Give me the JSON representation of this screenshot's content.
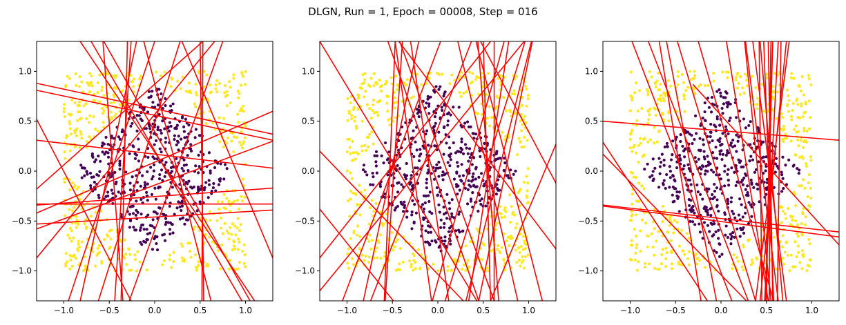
{
  "title": "DLGN, Run = 1, Epoch = 00008, Step = 016",
  "colors": {
    "inner": "#440154",
    "outer": "#fde725",
    "line": "#ff0000"
  },
  "chart_data": [
    {
      "type": "scatter",
      "xlim": [
        -1.3,
        1.3
      ],
      "ylim": [
        -1.3,
        1.3
      ],
      "xticks": [
        -1.0,
        -0.5,
        0.0,
        0.5,
        1.0
      ],
      "yticks": [
        -1.0,
        -0.5,
        0.0,
        0.5,
        1.0
      ],
      "xticklabels": [
        "−1.0",
        "−0.5",
        "0.0",
        "0.5",
        "1.0"
      ],
      "yticklabels": [
        "−1.0",
        "−0.5",
        "0.0",
        "0.5",
        "1.0"
      ],
      "grid": false,
      "series": [
        {
          "class": "inner",
          "color": "#440154",
          "region": "diamond |x|+|y|<=0.9 (approx.)",
          "point_count": 480
        },
        {
          "class": "outer",
          "color": "#fde725",
          "region": "square |x|,|y|<=1 outside diamond",
          "point_count": 520
        }
      ],
      "lines": [
        [
          [
            -1.3,
            0.88
          ],
          [
            1.3,
            0.37
          ]
        ],
        [
          [
            -1.3,
            0.81
          ],
          [
            1.3,
            0.31
          ]
        ],
        [
          [
            -1.3,
            0.31
          ],
          [
            1.3,
            0.03
          ]
        ],
        [
          [
            -1.3,
            -0.34
          ],
          [
            1.3,
            -0.17
          ]
        ],
        [
          [
            -1.3,
            -0.53
          ],
          [
            1.3,
            -0.39
          ]
        ],
        [
          [
            -1.3,
            -0.33
          ],
          [
            1.3,
            -0.33
          ]
        ],
        [
          [
            -1.3,
            0.52
          ],
          [
            -0.26,
            -1.3
          ]
        ],
        [
          [
            -1.3,
            -0.87
          ],
          [
            0.66,
            1.3
          ]
        ],
        [
          [
            -1.3,
            -0.18
          ],
          [
            0.53,
            1.3
          ]
        ],
        [
          [
            -1.3,
            -0.42
          ],
          [
            1.3,
            0.6
          ]
        ],
        [
          [
            -1.3,
            -0.58
          ],
          [
            1.3,
            0.3
          ]
        ],
        [
          [
            -0.56,
            1.3
          ],
          [
            1.05,
            -1.3
          ]
        ],
        [
          [
            -0.7,
            1.3
          ],
          [
            0.96,
            -1.3
          ]
        ],
        [
          [
            -0.57,
            1.3
          ],
          [
            -0.35,
            -1.3
          ]
        ],
        [
          [
            -0.26,
            1.3
          ],
          [
            -0.44,
            -1.3
          ]
        ],
        [
          [
            -0.3,
            1.3
          ],
          [
            -0.37,
            -1.3
          ]
        ],
        [
          [
            -0.2,
            1.3
          ],
          [
            -0.82,
            -1.3
          ]
        ],
        [
          [
            0.0,
            1.3
          ],
          [
            -0.95,
            -1.3
          ]
        ],
        [
          [
            0.28,
            1.3
          ],
          [
            -0.62,
            -1.3
          ]
        ],
        [
          [
            -0.12,
            1.3
          ],
          [
            0.62,
            -1.3
          ]
        ],
        [
          [
            0.53,
            1.3
          ],
          [
            0.52,
            -1.3
          ]
        ],
        [
          [
            0.5,
            1.3
          ],
          [
            0.54,
            -1.3
          ]
        ],
        [
          [
            0.3,
            1.3
          ],
          [
            1.3,
            -0.87
          ]
        ],
        [
          [
            -0.82,
            1.3
          ],
          [
            1.1,
            -1.3
          ]
        ],
        [
          [
            0.75,
            1.3
          ],
          [
            -0.28,
            -1.3
          ]
        ]
      ]
    },
    {
      "type": "scatter",
      "xlim": [
        -1.3,
        1.3
      ],
      "ylim": [
        -1.3,
        1.3
      ],
      "xticks": [
        -1.0,
        -0.5,
        0.0,
        0.5,
        1.0
      ],
      "yticks": [
        -1.0,
        -0.5,
        0.0,
        0.5,
        1.0
      ],
      "xticklabels": [
        "−1.0",
        "−0.5",
        "0.0",
        "0.5",
        "1.0"
      ],
      "yticklabels": [
        "−1.0",
        "−0.5",
        "0.0",
        "0.5",
        "1.0"
      ],
      "grid": false,
      "series": [
        {
          "class": "inner",
          "color": "#440154",
          "region": "diamond |x|+|y|<=0.9 (approx.)",
          "point_count": 480
        },
        {
          "class": "outer",
          "color": "#fde725",
          "region": "square |x|,|y|<=1 outside diamond",
          "point_count": 520
        }
      ],
      "lines": [
        [
          [
            -1.3,
            1.3
          ],
          [
            0.43,
            -1.3
          ]
        ],
        [
          [
            -1.3,
            0.2
          ],
          [
            0.28,
            -1.3
          ]
        ],
        [
          [
            -1.3,
            -0.38
          ],
          [
            -0.49,
            -1.3
          ]
        ],
        [
          [
            -1.3,
            -0.87
          ],
          [
            0.58,
            1.3
          ]
        ],
        [
          [
            -1.3,
            -1.2
          ],
          [
            0.95,
            1.3
          ]
        ],
        [
          [
            -0.55,
            1.3
          ],
          [
            0.45,
            -1.3
          ]
        ],
        [
          [
            -0.42,
            1.3
          ],
          [
            0.62,
            -1.3
          ]
        ],
        [
          [
            -0.3,
            1.3
          ],
          [
            0.12,
            -1.3
          ]
        ],
        [
          [
            -0.47,
            1.3
          ],
          [
            -0.07,
            -1.3
          ]
        ],
        [
          [
            -0.47,
            1.3
          ],
          [
            -0.59,
            -1.3
          ]
        ],
        [
          [
            -0.39,
            1.3
          ],
          [
            -0.58,
            -1.3
          ]
        ],
        [
          [
            -0.21,
            1.3
          ],
          [
            -0.82,
            -1.3
          ]
        ],
        [
          [
            0.03,
            1.3
          ],
          [
            -1.05,
            -1.3
          ]
        ],
        [
          [
            0.37,
            1.3
          ],
          [
            -0.74,
            -1.3
          ]
        ],
        [
          [
            0.5,
            1.3
          ],
          [
            0.58,
            -1.3
          ]
        ],
        [
          [
            0.44,
            1.3
          ],
          [
            0.67,
            -1.3
          ]
        ],
        [
          [
            0.22,
            1.3
          ],
          [
            0.88,
            -1.3
          ]
        ],
        [
          [
            0.62,
            1.3
          ],
          [
            0.62,
            -1.3
          ]
        ],
        [
          [
            0.73,
            1.3
          ],
          [
            -0.06,
            -1.3
          ]
        ],
        [
          [
            0.78,
            1.3
          ],
          [
            0.34,
            -1.3
          ]
        ],
        [
          [
            0.96,
            1.3
          ],
          [
            0.08,
            -1.3
          ]
        ],
        [
          [
            1.04,
            1.3
          ],
          [
            0.45,
            -1.3
          ]
        ],
        [
          [
            1.03,
            1.3
          ],
          [
            0.31,
            -1.3
          ]
        ],
        [
          [
            0.47,
            1.3
          ],
          [
            1.3,
            -0.12
          ]
        ],
        [
          [
            -0.43,
            1.3
          ],
          [
            1.3,
            -0.78
          ]
        ],
        [
          [
            0.42,
            1.3
          ],
          [
            1.15,
            -1.3
          ]
        ],
        [
          [
            1.3,
            0.27
          ],
          [
            0.58,
            -1.3
          ]
        ]
      ]
    },
    {
      "type": "scatter",
      "xlim": [
        -1.3,
        1.3
      ],
      "ylim": [
        -1.3,
        1.3
      ],
      "xticks": [
        -1.0,
        -0.5,
        0.0,
        0.5,
        1.0
      ],
      "yticks": [
        -1.0,
        -0.5,
        0.0,
        0.5,
        1.0
      ],
      "xticklabels": [
        "−1.0",
        "−0.5",
        "0.0",
        "0.5",
        "1.0"
      ],
      "yticklabels": [
        "−1.0",
        "−0.5",
        "0.0",
        "0.5",
        "1.0"
      ],
      "grid": false,
      "series": [
        {
          "class": "inner",
          "color": "#440154",
          "region": "diamond |x|+|y|<=0.9 (approx.)",
          "point_count": 480
        },
        {
          "class": "outer",
          "color": "#fde725",
          "region": "square |x|,|y|<=1 outside diamond",
          "point_count": 520
        }
      ],
      "lines": [
        [
          [
            -1.3,
            0.5
          ],
          [
            1.3,
            0.31
          ]
        ],
        [
          [
            -1.3,
            -0.34
          ],
          [
            1.3,
            -0.61
          ]
        ],
        [
          [
            -1.3,
            -0.35
          ],
          [
            1.3,
            -0.66
          ]
        ],
        [
          [
            -1.3,
            0.29
          ],
          [
            -0.15,
            -1.3
          ]
        ],
        [
          [
            -1.3,
            0.17
          ],
          [
            0.28,
            -1.3
          ]
        ],
        [
          [
            -0.98,
            1.3
          ],
          [
            0.12,
            -1.3
          ]
        ],
        [
          [
            -0.8,
            1.3
          ],
          [
            0.3,
            -1.3
          ]
        ],
        [
          [
            -0.68,
            1.3
          ],
          [
            -0.22,
            -1.3
          ]
        ],
        [
          [
            -0.6,
            1.3
          ],
          [
            -0.05,
            -1.3
          ]
        ],
        [
          [
            -0.48,
            1.3
          ],
          [
            0.38,
            -1.3
          ]
        ],
        [
          [
            -0.25,
            1.3
          ],
          [
            0.58,
            -1.3
          ]
        ],
        [
          [
            0.06,
            1.3
          ],
          [
            0.52,
            -1.3
          ]
        ],
        [
          [
            0.26,
            1.3
          ],
          [
            0.55,
            -1.3
          ]
        ],
        [
          [
            0.35,
            1.3
          ],
          [
            0.72,
            -1.3
          ]
        ],
        [
          [
            0.42,
            1.3
          ],
          [
            0.45,
            -1.3
          ]
        ],
        [
          [
            0.43,
            1.3
          ],
          [
            0.68,
            -1.3
          ]
        ],
        [
          [
            0.47,
            1.3
          ],
          [
            0.58,
            -1.3
          ]
        ],
        [
          [
            0.52,
            1.3
          ],
          [
            0.57,
            -1.3
          ]
        ],
        [
          [
            0.55,
            1.3
          ],
          [
            0.53,
            -1.3
          ]
        ],
        [
          [
            0.55,
            1.3
          ],
          [
            0.5,
            -1.3
          ]
        ],
        [
          [
            0.57,
            1.3
          ],
          [
            0.49,
            -1.3
          ]
        ],
        [
          [
            0.63,
            1.3
          ],
          [
            0.48,
            -1.3
          ]
        ],
        [
          [
            0.66,
            1.3
          ],
          [
            0.62,
            -1.3
          ]
        ],
        [
          [
            0.72,
            1.3
          ],
          [
            0.43,
            -1.3
          ]
        ],
        [
          [
            0.75,
            1.3
          ],
          [
            0.38,
            -1.3
          ]
        ],
        [
          [
            0.27,
            1.3
          ],
          [
            0.63,
            -1.3
          ]
        ],
        [
          [
            -0.31,
            0.87
          ],
          [
            1.3,
            -0.74
          ]
        ]
      ]
    }
  ]
}
